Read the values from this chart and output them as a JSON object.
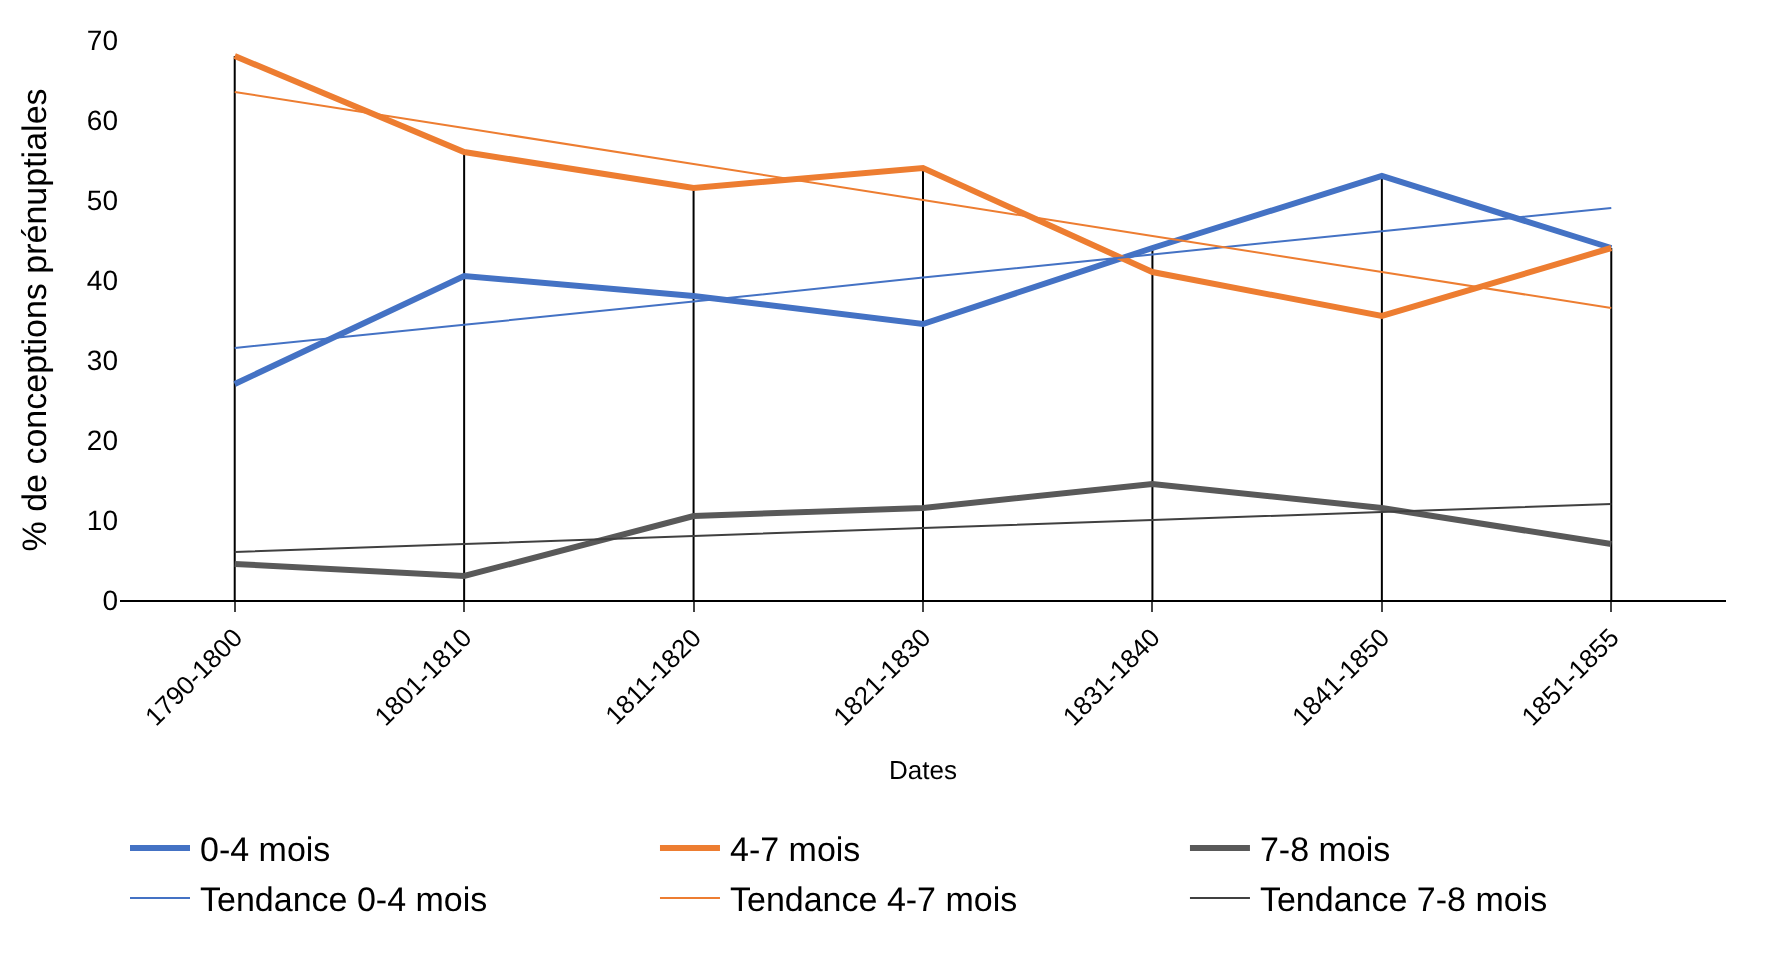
{
  "chart_data": {
    "type": "line",
    "xlabel": "Dates",
    "ylabel": "% de conceptions prénuptiales",
    "categories": [
      "1790-1800",
      "1801-1810",
      "1811-1820",
      "1821-1830",
      "1831-1840",
      "1841-1850",
      "1851-1855"
    ],
    "series": [
      {
        "name": "0-4 mois",
        "color": "#4472c4",
        "values": [
          27,
          40.5,
          38,
          34.5,
          44,
          53,
          44
        ]
      },
      {
        "name": "4-7 mois",
        "color": "#ed7d31",
        "values": [
          68,
          56,
          51.5,
          54,
          41,
          35.5,
          44
        ],
        "errors": [
          [
            0,
            68
          ],
          [
            0,
            56
          ],
          [
            0,
            51.5
          ],
          [
            0,
            54
          ],
          [
            0,
            44
          ],
          [
            0,
            53
          ],
          [
            0,
            44
          ]
        ]
      },
      {
        "name": "7-8 mois",
        "color": "#595959",
        "values": [
          4.5,
          3,
          10.5,
          11.5,
          14.5,
          11.5,
          7
        ]
      },
      {
        "name": "Tendance 0-4 mois",
        "color": "#4472c4",
        "values": [
          31.5,
          34.4,
          37.3,
          40.3,
          43.2,
          46.1,
          49
        ]
      },
      {
        "name": "Tendance 4-7 mois",
        "color": "#ed7d31",
        "values": [
          63.5,
          59,
          54.5,
          50,
          45.5,
          41,
          36.5
        ]
      },
      {
        "name": "Tendance 7-8 mois",
        "color": "#404040",
        "values": [
          6,
          7,
          8,
          9,
          10,
          11,
          12
        ]
      }
    ],
    "ylim": [
      0,
      70
    ],
    "yticks": [
      0,
      10,
      20,
      30,
      40,
      50,
      60,
      70
    ],
    "legend": "bottom",
    "marker": "none",
    "line_style": "solid"
  }
}
